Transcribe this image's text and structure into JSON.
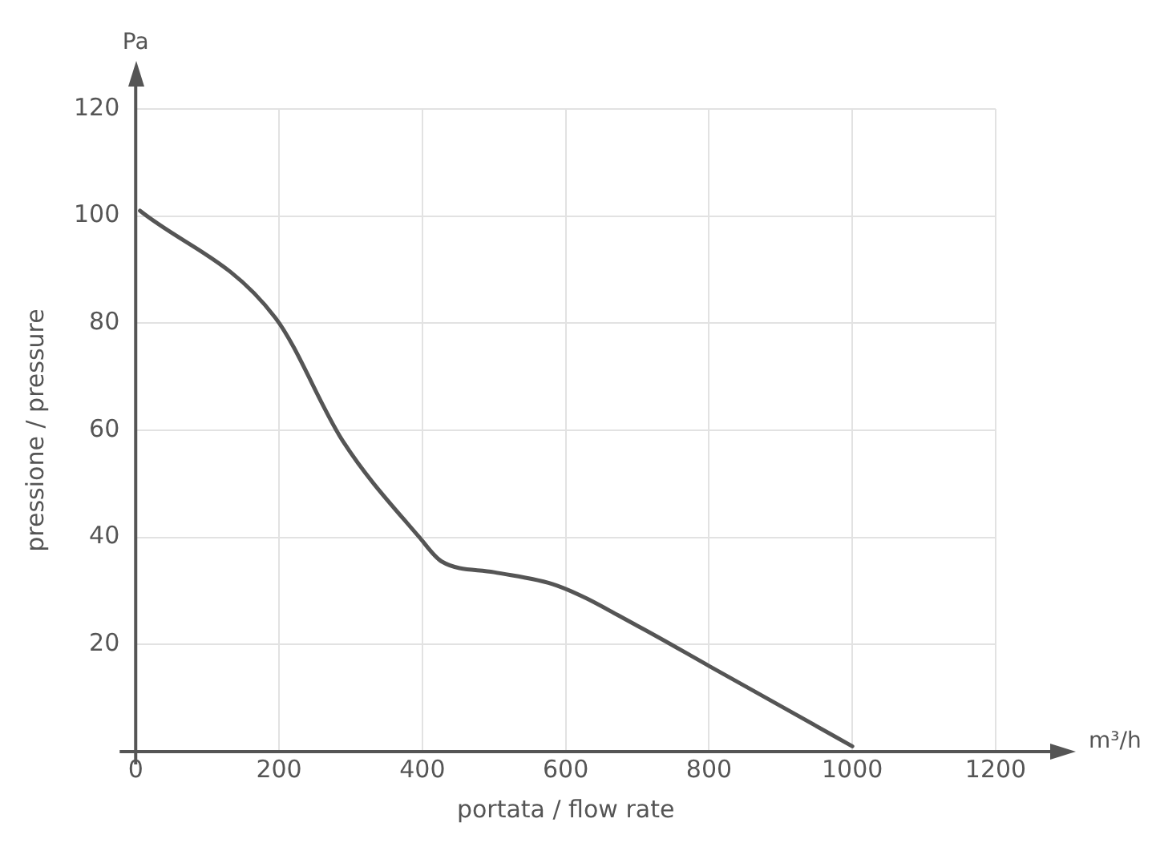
{
  "chart_data": {
    "type": "line",
    "xlabel": "portata / flow rate",
    "ylabel": "pressione / pressure",
    "annotations": [
      "Pa",
      "m³/h"
    ],
    "x": [
      6,
      195,
      289,
      396,
      427,
      500,
      588,
      700,
      800,
      900,
      1000
    ],
    "series": [
      {
        "color": "#555555",
        "values": [
          101,
          81,
          58,
          40,
          35.5,
          33.5,
          31,
          23.5,
          16,
          8.5,
          1
        ]
      }
    ],
    "xlim": [
      0,
      1200
    ],
    "xticks": [
      0,
      200,
      400,
      600,
      800,
      1000,
      1200
    ],
    "ylim": [
      0,
      120
    ],
    "yticks": [
      20,
      40,
      60,
      80,
      100,
      120
    ],
    "grid": true,
    "legend": false,
    "marker": "none",
    "line_style": "solid"
  }
}
